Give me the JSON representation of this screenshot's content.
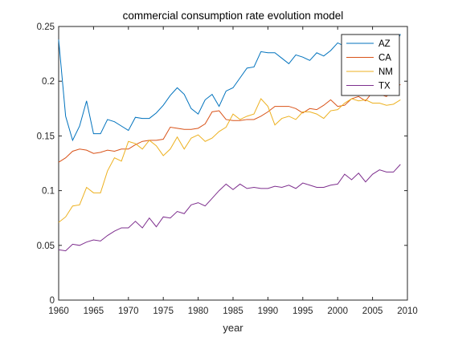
{
  "chart_data": {
    "type": "line",
    "title": "commercial consumption rate evolution model",
    "xlabel": "year",
    "ylabel": "",
    "xlim": [
      1960,
      2010
    ],
    "ylim": [
      0,
      0.25
    ],
    "xticks": [
      1960,
      1965,
      1970,
      1975,
      1980,
      1985,
      1990,
      1995,
      2000,
      2005,
      2010
    ],
    "yticks": [
      0,
      0.05,
      0.1,
      0.15,
      0.2,
      0.25
    ],
    "xtick_labels": [
      "1960",
      "1965",
      "1970",
      "1975",
      "1980",
      "1985",
      "1990",
      "1995",
      "2000",
      "2005",
      "2010"
    ],
    "ytick_labels": [
      "0",
      "0.05",
      "0.1",
      "0.15",
      "0.2",
      "0.25"
    ],
    "grid": false,
    "legend_position": "top-right",
    "x": [
      1960,
      1961,
      1962,
      1963,
      1964,
      1965,
      1966,
      1967,
      1968,
      1969,
      1970,
      1971,
      1972,
      1973,
      1974,
      1975,
      1976,
      1977,
      1978,
      1979,
      1980,
      1981,
      1982,
      1983,
      1984,
      1985,
      1986,
      1987,
      1988,
      1989,
      1990,
      1991,
      1992,
      1993,
      1994,
      1995,
      1996,
      1997,
      1998,
      1999,
      2000,
      2001,
      2002,
      2003,
      2004,
      2005,
      2006,
      2007,
      2008,
      2009
    ],
    "series": [
      {
        "name": "AZ",
        "color": "#0072BD",
        "values": [
          0.238,
          0.168,
          0.146,
          0.159,
          0.182,
          0.152,
          0.152,
          0.165,
          0.163,
          0.159,
          0.155,
          0.167,
          0.166,
          0.166,
          0.171,
          0.178,
          0.187,
          0.194,
          0.188,
          0.175,
          0.17,
          0.183,
          0.188,
          0.177,
          0.191,
          0.194,
          0.203,
          0.212,
          0.213,
          0.227,
          0.226,
          0.226,
          0.221,
          0.216,
          0.224,
          0.222,
          0.219,
          0.226,
          0.223,
          0.228,
          0.235,
          0.232,
          0.232,
          0.233,
          0.225,
          0.23,
          0.232,
          0.23,
          0.228,
          0.243
        ]
      },
      {
        "name": "CA",
        "color": "#D95319",
        "values": [
          0.126,
          0.13,
          0.136,
          0.138,
          0.137,
          0.134,
          0.135,
          0.137,
          0.136,
          0.138,
          0.138,
          0.142,
          0.145,
          0.146,
          0.146,
          0.147,
          0.158,
          0.157,
          0.156,
          0.156,
          0.157,
          0.161,
          0.172,
          0.173,
          0.165,
          0.164,
          0.164,
          0.165,
          0.165,
          0.168,
          0.172,
          0.177,
          0.177,
          0.177,
          0.175,
          0.171,
          0.175,
          0.174,
          0.178,
          0.183,
          0.177,
          0.178,
          0.184,
          0.186,
          0.182,
          0.19,
          0.188,
          0.186,
          0.193,
          0.197
        ]
      },
      {
        "name": "NM",
        "color": "#EDB120",
        "values": [
          0.071,
          0.076,
          0.086,
          0.087,
          0.103,
          0.098,
          0.098,
          0.118,
          0.13,
          0.127,
          0.145,
          0.143,
          0.138,
          0.146,
          0.141,
          0.132,
          0.138,
          0.149,
          0.138,
          0.148,
          0.151,
          0.145,
          0.148,
          0.154,
          0.158,
          0.17,
          0.165,
          0.168,
          0.17,
          0.184,
          0.177,
          0.16,
          0.166,
          0.168,
          0.165,
          0.172,
          0.172,
          0.17,
          0.166,
          0.173,
          0.174,
          0.18,
          0.184,
          0.182,
          0.183,
          0.18,
          0.18,
          0.178,
          0.179,
          0.183
        ]
      },
      {
        "name": "TX",
        "color": "#7E2F8E",
        "values": [
          0.046,
          0.045,
          0.051,
          0.05,
          0.053,
          0.055,
          0.054,
          0.059,
          0.063,
          0.066,
          0.066,
          0.072,
          0.066,
          0.075,
          0.067,
          0.076,
          0.075,
          0.081,
          0.079,
          0.087,
          0.089,
          0.086,
          0.093,
          0.1,
          0.106,
          0.101,
          0.106,
          0.102,
          0.103,
          0.102,
          0.102,
          0.104,
          0.103,
          0.105,
          0.102,
          0.107,
          0.105,
          0.103,
          0.103,
          0.105,
          0.106,
          0.115,
          0.11,
          0.116,
          0.108,
          0.115,
          0.119,
          0.117,
          0.117,
          0.124
        ]
      }
    ]
  }
}
